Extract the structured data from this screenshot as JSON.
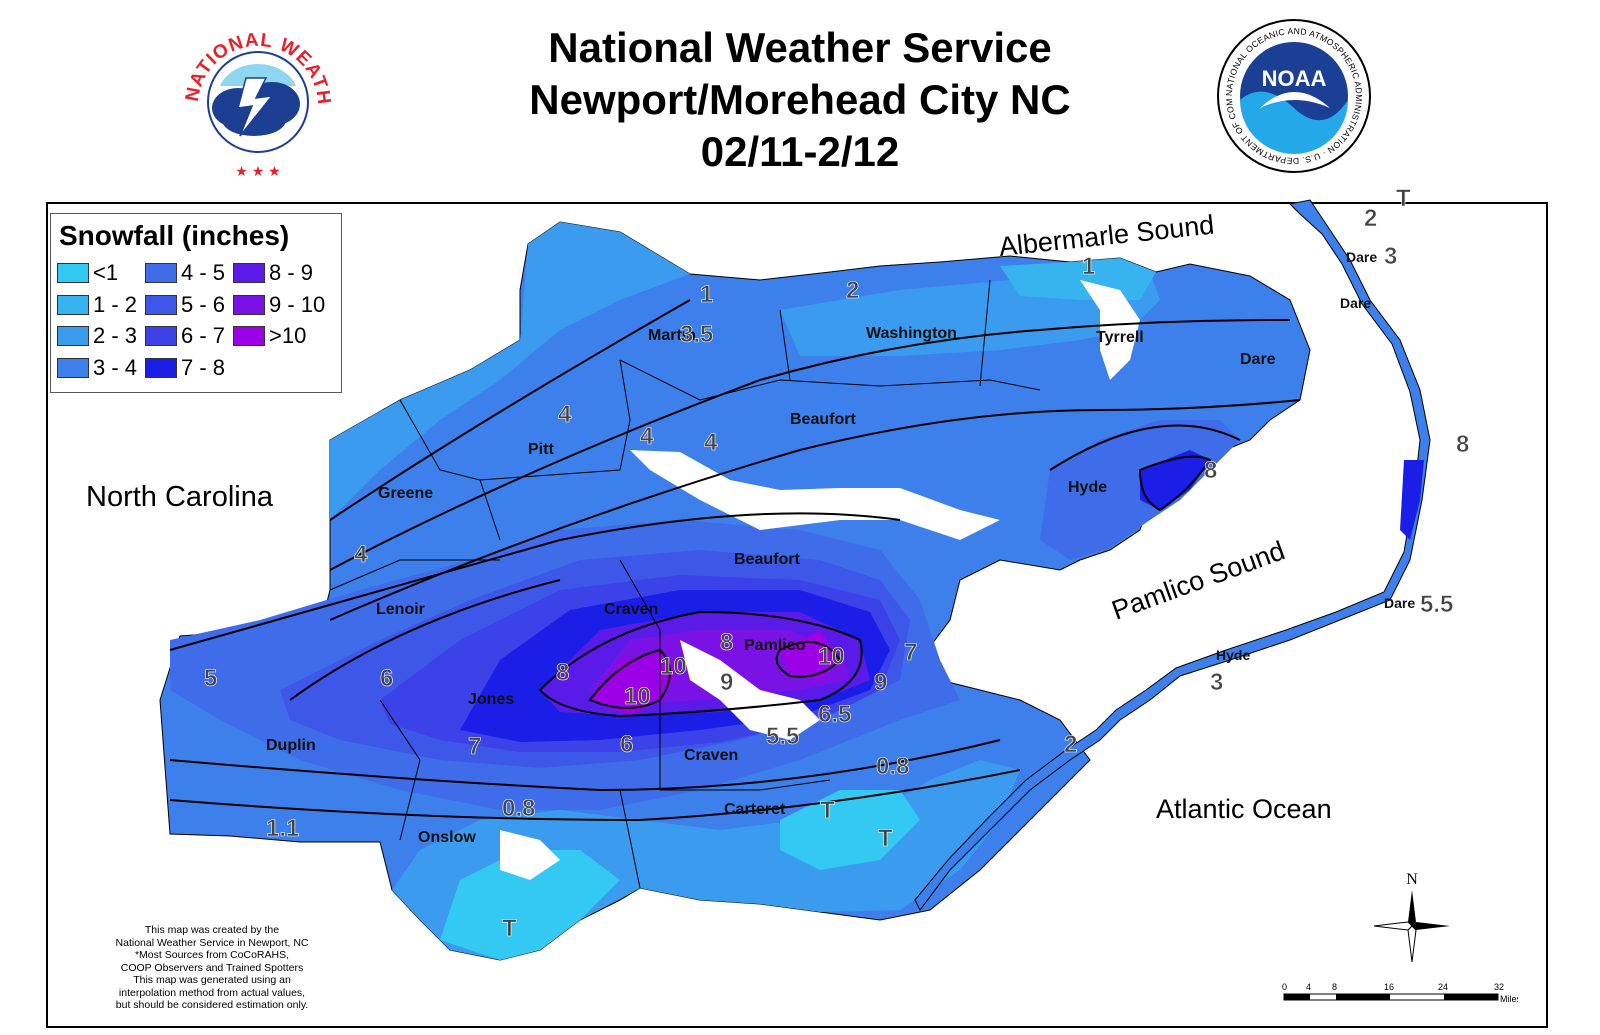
{
  "header": {
    "line1": "National Weather Service",
    "line2": "Newport/Morehead City NC",
    "line3": "02/11-2/12"
  },
  "logos": {
    "nws": {
      "ring_text": "NATIONAL WEATHER SERVICE",
      "name": "nws-logo"
    },
    "noaa": {
      "center_text": "NOAA",
      "ring_text": "NATIONAL OCEANIC AND ATMOSPHERIC ADMINISTRATION · U.S. DEPARTMENT OF COMMERCE",
      "name": "noaa-logo"
    }
  },
  "legend": {
    "title": "Snowfall (inches)",
    "items": [
      {
        "label": "<1",
        "color": "#33c9f2"
      },
      {
        "label": "1 - 2",
        "color": "#37b4f0"
      },
      {
        "label": "2 - 3",
        "color": "#3b9bee"
      },
      {
        "label": "3 - 4",
        "color": "#3d80ec"
      },
      {
        "label": "4 - 5",
        "color": "#3f6ce9"
      },
      {
        "label": "5 - 6",
        "color": "#3d58e8"
      },
      {
        "label": "6 - 7",
        "color": "#3a42e8"
      },
      {
        "label": "7 - 8",
        "color": "#1a1ee6"
      },
      {
        "label": "8 - 9",
        "color": "#5a1be8"
      },
      {
        "label": "9 - 10",
        "color": "#7a12e6"
      },
      {
        "label": ">10",
        "color": "#9b00e6"
      }
    ]
  },
  "places": {
    "north_carolina": "North Carolina",
    "albemarle_sound": "Albermarle Sound",
    "pamlico_sound": "Pamlico Sound",
    "atlantic_ocean": "Atlantic Ocean"
  },
  "counties": {
    "martin": "Martin",
    "washington": "Washington",
    "tyrrell": "Tyrrell",
    "dare_main": "Dare",
    "pitt": "Pitt",
    "beaufort_n": "Beaufort",
    "greene": "Greene",
    "hyde_main": "Hyde",
    "beaufort_s": "Beaufort",
    "lenoir": "Lenoir",
    "craven_n": "Craven",
    "pamlico": "Pamlico",
    "jones": "Jones",
    "duplin": "Duplin",
    "craven_s": "Craven",
    "carteret": "Carteret",
    "onslow": "Onslow",
    "dare_ob1": "Dare",
    "dare_ob2": "Dare",
    "dare_ob3": "Dare",
    "hyde_ob": "Hyde"
  },
  "values": {
    "v_martin1": "1",
    "v_martin35": "3.5",
    "v_wash2": "2",
    "v_tyr1": "1",
    "v_ob2": "2",
    "v_ob3": "3",
    "v_ob_t": "T",
    "v_pitt4": "4",
    "v_4b": "4",
    "v_4c": "4",
    "v_hyde8": "8",
    "v_ob8": "8",
    "v_greene4": "4",
    "v_duplin5": "5",
    "v_lenoir6": "6",
    "v_craven8a": "8",
    "v_craven8b": "8",
    "v_10a": "10",
    "v_10b": "10",
    "v_10c": "10",
    "v_9a": "9",
    "v_9b": "9",
    "v_7a": "7",
    "v_65": "6.5",
    "v_55a": "5.5",
    "v_7b": "7",
    "v_6": "6",
    "v_08a": "0.8",
    "v_08b": "0.8",
    "v_11": "1.1",
    "v_ta": "T",
    "v_tb": "T",
    "v_tc": "T",
    "v_ob2b": "2",
    "v_ob3b": "3",
    "v_ob55": "5.5"
  },
  "credit": {
    "line1": "This map was created by the",
    "line2": "National Weather Service in Newport, NC",
    "line3": "*Most Sources from CoCoRAHS,",
    "line4": "COOP Observers and Trained Spotters",
    "line5": "This map was generated using an",
    "line6": "interpolation method from actual values,",
    "line7": "but should be considered estimation only."
  },
  "compass": {
    "north": "N"
  },
  "scale": {
    "ticks": [
      "0",
      "4",
      "8",
      "16",
      "24",
      "32"
    ],
    "unit": "Miles"
  }
}
